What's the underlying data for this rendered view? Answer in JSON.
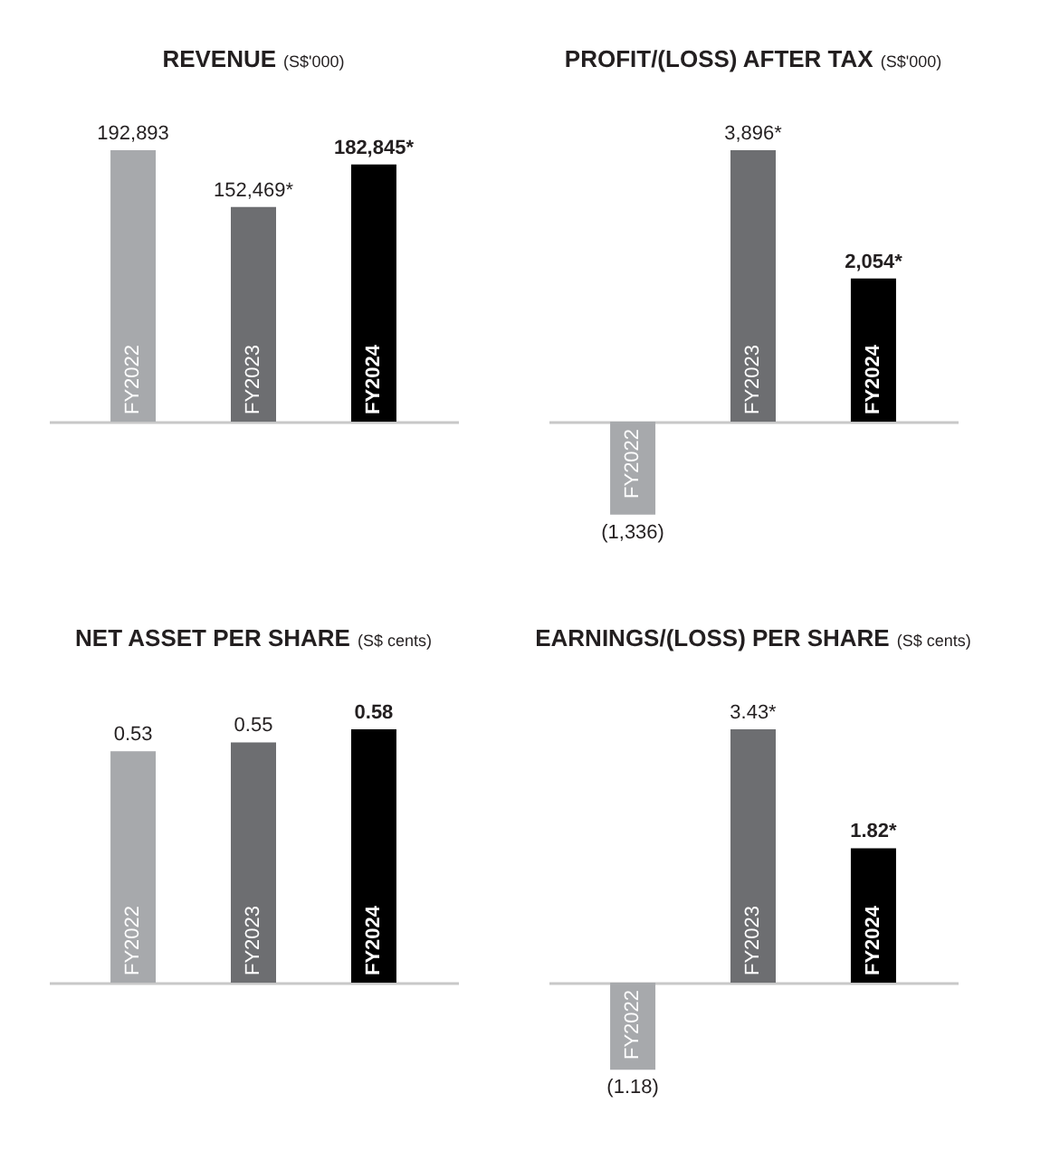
{
  "chart_data": [
    {
      "type": "bar",
      "title": "REVENUE",
      "subtitle": "(S$'000)",
      "categories": [
        "FY2022",
        "FY2023",
        "FY2024"
      ],
      "values": [
        192893,
        152469,
        182845
      ],
      "colors": [
        "#a7a9ac",
        "#6d6e71",
        "#000000"
      ],
      "value_labels": [
        "192,893",
        "152,469*",
        "182,845*"
      ],
      "tick_labels": "x"
    },
    {
      "type": "bar",
      "title": "PROFIT/(LOSS) AFTER TAX",
      "subtitle": "(S$'000)",
      "categories": [
        "FY2022",
        "FY2023",
        "FY2024"
      ],
      "values": [
        -1336,
        3896,
        2054
      ],
      "colors": [
        "#a7a9ac",
        "#6d6e71",
        "#000000"
      ],
      "value_labels": [
        "(1,336)",
        "3,896*",
        "2,054*"
      ],
      "tick_labels": "x"
    },
    {
      "type": "bar",
      "title": "NET ASSET PER SHARE",
      "subtitle": "(S$ cents)",
      "categories": [
        "FY2022",
        "FY2023",
        "FY2024"
      ],
      "values": [
        0.53,
        0.55,
        0.58
      ],
      "colors": [
        "#a7a9ac",
        "#6d6e71",
        "#000000"
      ],
      "data_labels": true,
      "tick_labels": "x"
    },
    {
      "type": "bar",
      "title": "EARNINGS/(LOSS) PER SHARE",
      "subtitle": "(S$ cents)",
      "categories": [
        "FY2022",
        "FY2023",
        "FY2024"
      ],
      "values": [
        -1.18,
        3.43,
        1.82
      ],
      "colors": [
        "#a7a9ac",
        "#6d6e71",
        "#000000"
      ],
      "value_labels": [
        "(1.18)",
        "3.43*",
        "1.82*"
      ],
      "tick_labels": "x"
    }
  ]
}
